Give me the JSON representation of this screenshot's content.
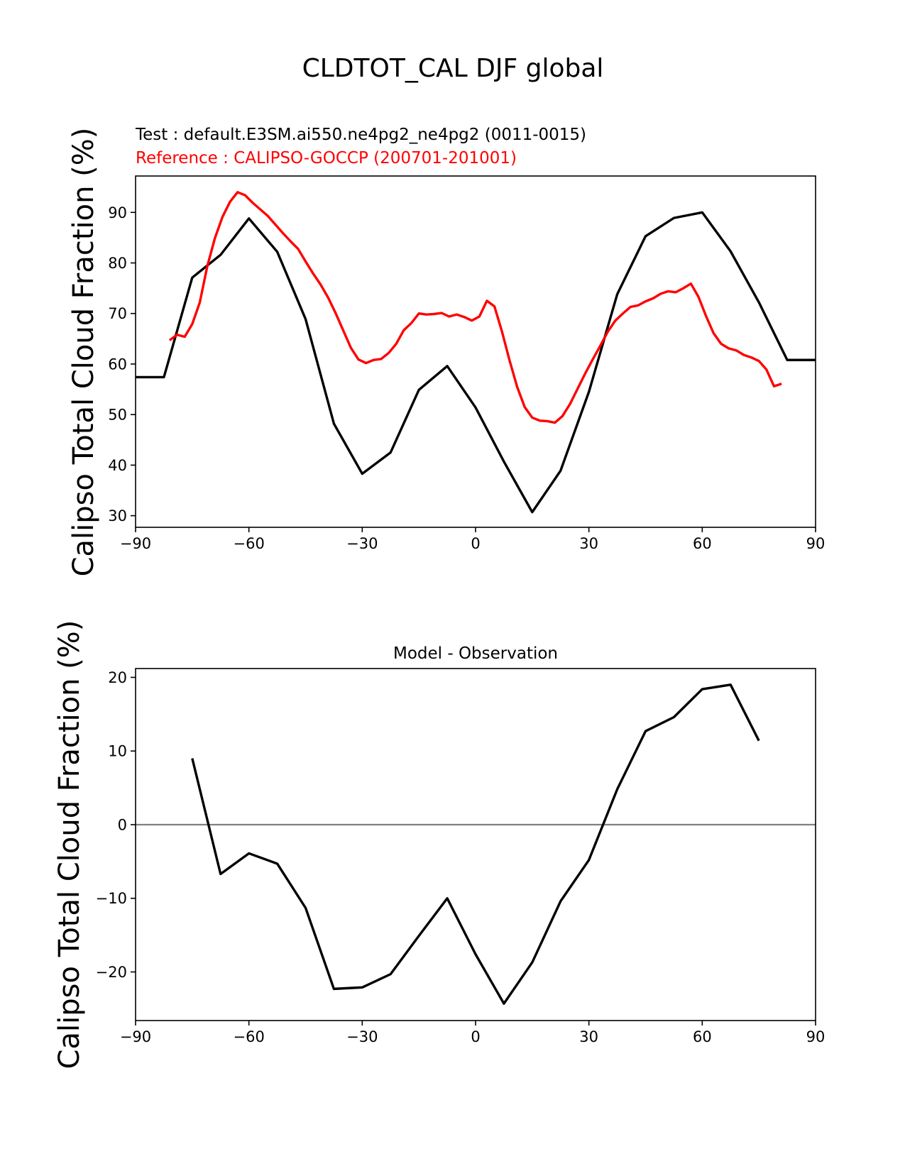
{
  "suptitle": "CLDTOT_CAL DJF global",
  "test_label": "Test : default.E3SM.ai550.ne4pg2_ne4pg2 (0011-0015)",
  "reference_label": "Reference : CALIPSO-GOCCP (200701-201001)",
  "colors": {
    "test": "#000000",
    "reference": "#ff0000",
    "zero_line": "#808080"
  },
  "chart_data": [
    {
      "type": "line",
      "title": "",
      "xlabel": "",
      "ylabel": "Calipso Total Cloud Fraction (%)",
      "xlim": [
        -90,
        90
      ],
      "ylim": [
        27.7,
        97.2
      ],
      "xticks": [
        -90,
        -60,
        -30,
        0,
        30,
        60,
        90
      ],
      "xtick_labels": [
        "−90",
        "−60",
        "−30",
        "0",
        "30",
        "60",
        "90"
      ],
      "yticks": [
        30,
        40,
        50,
        60,
        70,
        80,
        90
      ],
      "ytick_labels": [
        "30",
        "40",
        "50",
        "60",
        "70",
        "80",
        "90"
      ],
      "series": [
        {
          "name": "Test : default.E3SM.ai550.ne4pg2_ne4pg2 (0011-0015)",
          "color": "#000000",
          "x": [
            -90,
            -82.5,
            -75,
            -67.5,
            -60,
            -52.5,
            -45,
            -37.5,
            -30,
            -22.5,
            -15,
            -7.5,
            0,
            7.5,
            15,
            22.5,
            30,
            37.5,
            45,
            52.5,
            60,
            67.5,
            75,
            82.5,
            90
          ],
          "y": [
            57.4,
            57.4,
            77.1,
            81.6,
            88.8,
            82.2,
            68.9,
            48.2,
            38.3,
            42.5,
            54.9,
            59.6,
            51.4,
            40.7,
            30.7,
            38.9,
            54.5,
            73.8,
            85.3,
            88.9,
            90.0,
            82.3,
            72.2,
            60.8,
            60.8
          ]
        },
        {
          "name": "Reference : CALIPSO-GOCCP (200701-201001)",
          "color": "#ff0000",
          "x": [
            -81,
            -79,
            -77,
            -75,
            -73,
            -71,
            -69,
            -67,
            -65,
            -63,
            -61,
            -59,
            -57,
            -55,
            -53,
            -51,
            -49,
            -47,
            -45,
            -43,
            -41,
            -39,
            -37,
            -35,
            -33,
            -31,
            -29,
            -27,
            -25,
            -23,
            -21,
            -19,
            -17,
            -15,
            -13,
            -11,
            -9,
            -7,
            -5,
            -3,
            -1,
            1,
            3,
            5,
            7,
            9,
            11,
            13,
            15,
            17,
            19,
            21,
            23,
            25,
            27,
            29,
            31,
            33,
            35,
            37,
            39,
            41,
            43,
            45,
            47,
            49,
            51,
            53,
            55,
            57,
            59,
            61,
            63,
            65,
            67,
            69,
            71,
            73,
            75,
            77,
            79,
            81
          ],
          "y": [
            64.7,
            65.8,
            65.4,
            67.9,
            72.2,
            79.4,
            84.9,
            89.1,
            92.1,
            94.0,
            93.4,
            91.9,
            90.6,
            89.3,
            87.6,
            85.9,
            84.3,
            82.8,
            80.3,
            77.9,
            75.7,
            73.1,
            70.0,
            66.6,
            63.2,
            60.9,
            60.2,
            60.8,
            61.0,
            62.2,
            64.0,
            66.7,
            68.1,
            70.0,
            69.8,
            69.9,
            70.1,
            69.4,
            69.8,
            69.3,
            68.6,
            69.4,
            72.5,
            71.4,
            66.4,
            60.7,
            55.5,
            51.5,
            49.4,
            48.8,
            48.7,
            48.4,
            49.7,
            52.1,
            55.1,
            58.1,
            60.9,
            63.6,
            66.4,
            68.6,
            70.0,
            71.3,
            71.6,
            72.4,
            73.0,
            73.9,
            74.4,
            74.2,
            75.0,
            75.9,
            73.3,
            69.5,
            66.1,
            64.0,
            63.1,
            62.7,
            61.8,
            61.3,
            60.6,
            58.9,
            55.6,
            56.1
          ]
        }
      ]
    },
    {
      "type": "line",
      "title": "Model - Observation",
      "xlabel": "",
      "ylabel": "Calipso Total Cloud Fraction (%)",
      "xlim": [
        -90,
        90
      ],
      "ylim": [
        -26.6,
        21.2
      ],
      "xticks": [
        -90,
        -60,
        -30,
        0,
        30,
        60,
        90
      ],
      "xtick_labels": [
        "−90",
        "−60",
        "−30",
        "0",
        "30",
        "60",
        "90"
      ],
      "yticks": [
        -20,
        -10,
        0,
        10,
        20
      ],
      "ytick_labels": [
        "−20",
        "−10",
        "0",
        "10",
        "20"
      ],
      "zero_line": 0,
      "series": [
        {
          "name": "Model - Observation",
          "color": "#000000",
          "x": [
            -75,
            -67.5,
            -60,
            -52.5,
            -45,
            -37.5,
            -30,
            -22.5,
            -15,
            -7.5,
            0,
            7.5,
            15,
            22.5,
            30,
            37.5,
            45,
            52.5,
            60,
            67.5,
            75
          ],
          "y": [
            9.0,
            -6.7,
            -3.9,
            -5.3,
            -11.3,
            -22.3,
            -22.1,
            -20.3,
            -15.1,
            -10.0,
            -17.6,
            -24.3,
            -18.7,
            -10.4,
            -4.8,
            4.8,
            12.7,
            14.6,
            18.4,
            19.0,
            11.4
          ]
        }
      ]
    }
  ]
}
